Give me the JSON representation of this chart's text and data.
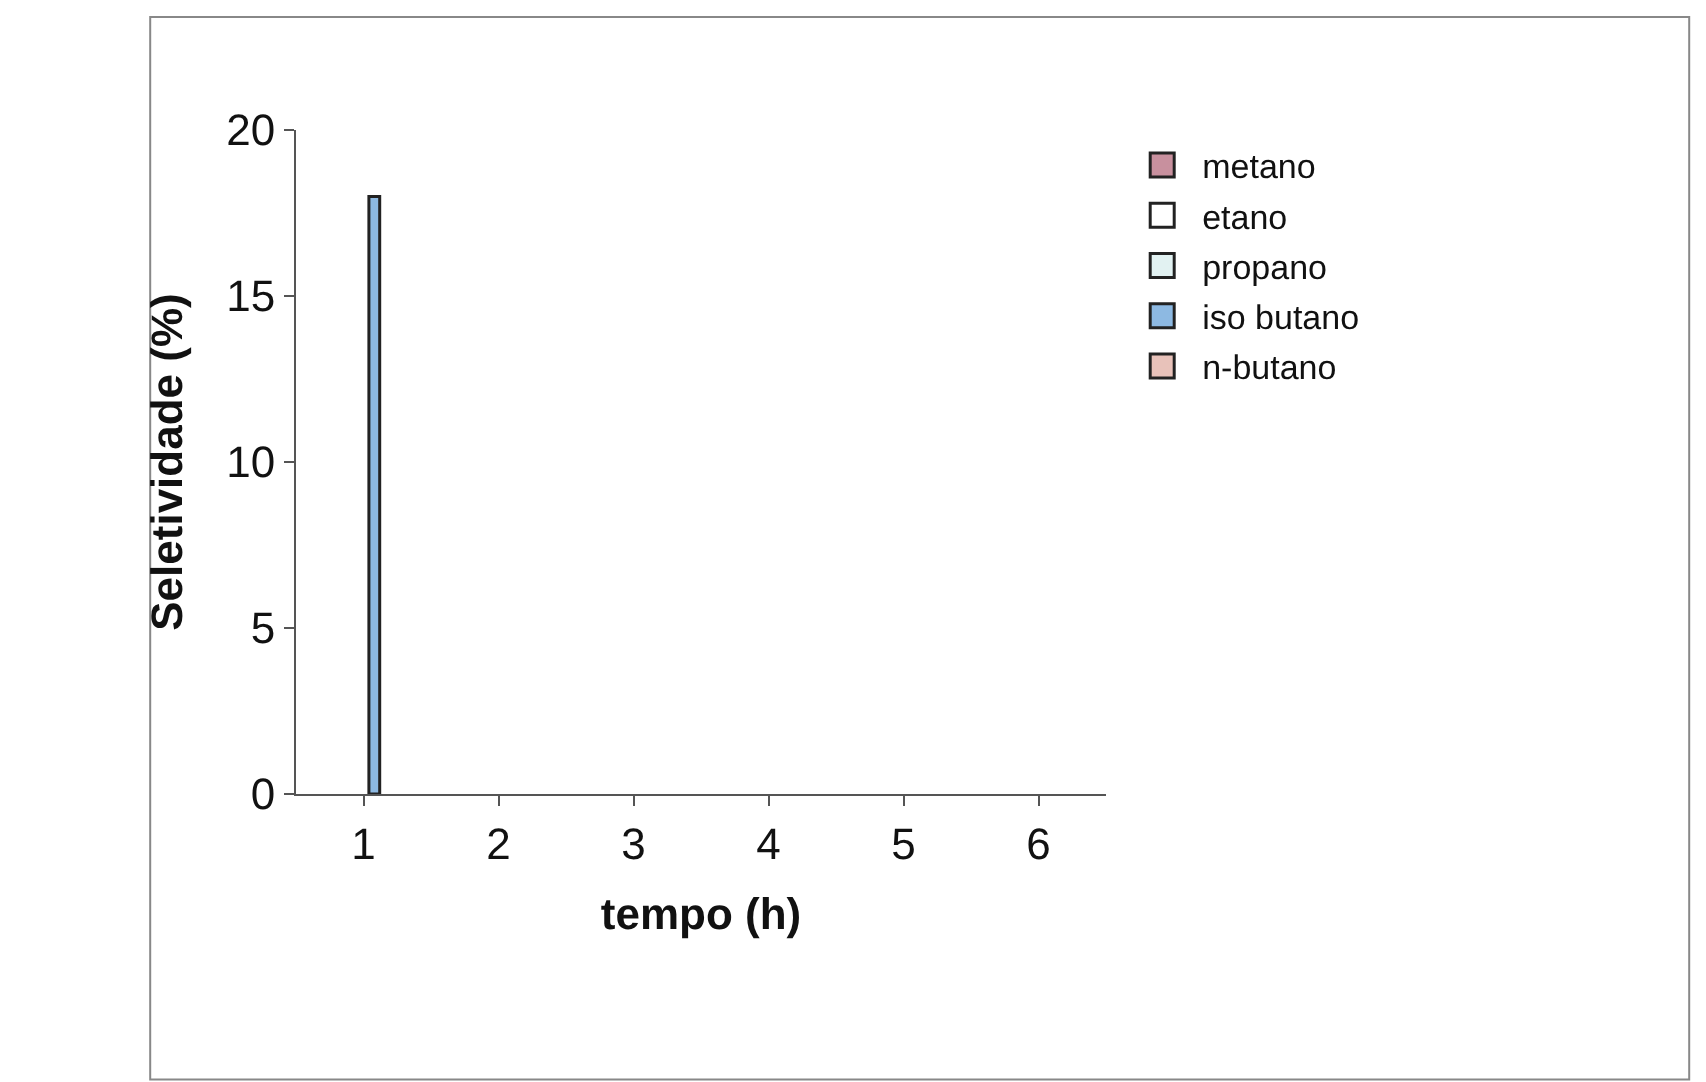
{
  "chart_data": {
    "type": "bar",
    "xlabel": "tempo (h)",
    "ylabel": "Seletividade (%)",
    "categories": [
      "1",
      "2",
      "3",
      "4",
      "5",
      "6"
    ],
    "series": [
      {
        "name": "metano",
        "color": "#c8909e",
        "values": [
          null,
          null,
          null,
          null,
          null,
          null
        ]
      },
      {
        "name": "etano",
        "color": "#ffffff",
        "values": [
          null,
          null,
          null,
          null,
          null,
          null
        ]
      },
      {
        "name": "propano",
        "color": "#e2f2f2",
        "values": [
          null,
          null,
          null,
          null,
          null,
          null
        ]
      },
      {
        "name": "iso butano",
        "color": "#8db9e2",
        "values": [
          18,
          null,
          null,
          null,
          null,
          null
        ]
      },
      {
        "name": "n-butano",
        "color": "#e8c2ba",
        "values": [
          null,
          null,
          null,
          null,
          null,
          null
        ]
      }
    ],
    "ylim": [
      0,
      20
    ],
    "yticks": [
      0,
      5,
      10,
      15,
      20
    ],
    "legend": "top right"
  }
}
